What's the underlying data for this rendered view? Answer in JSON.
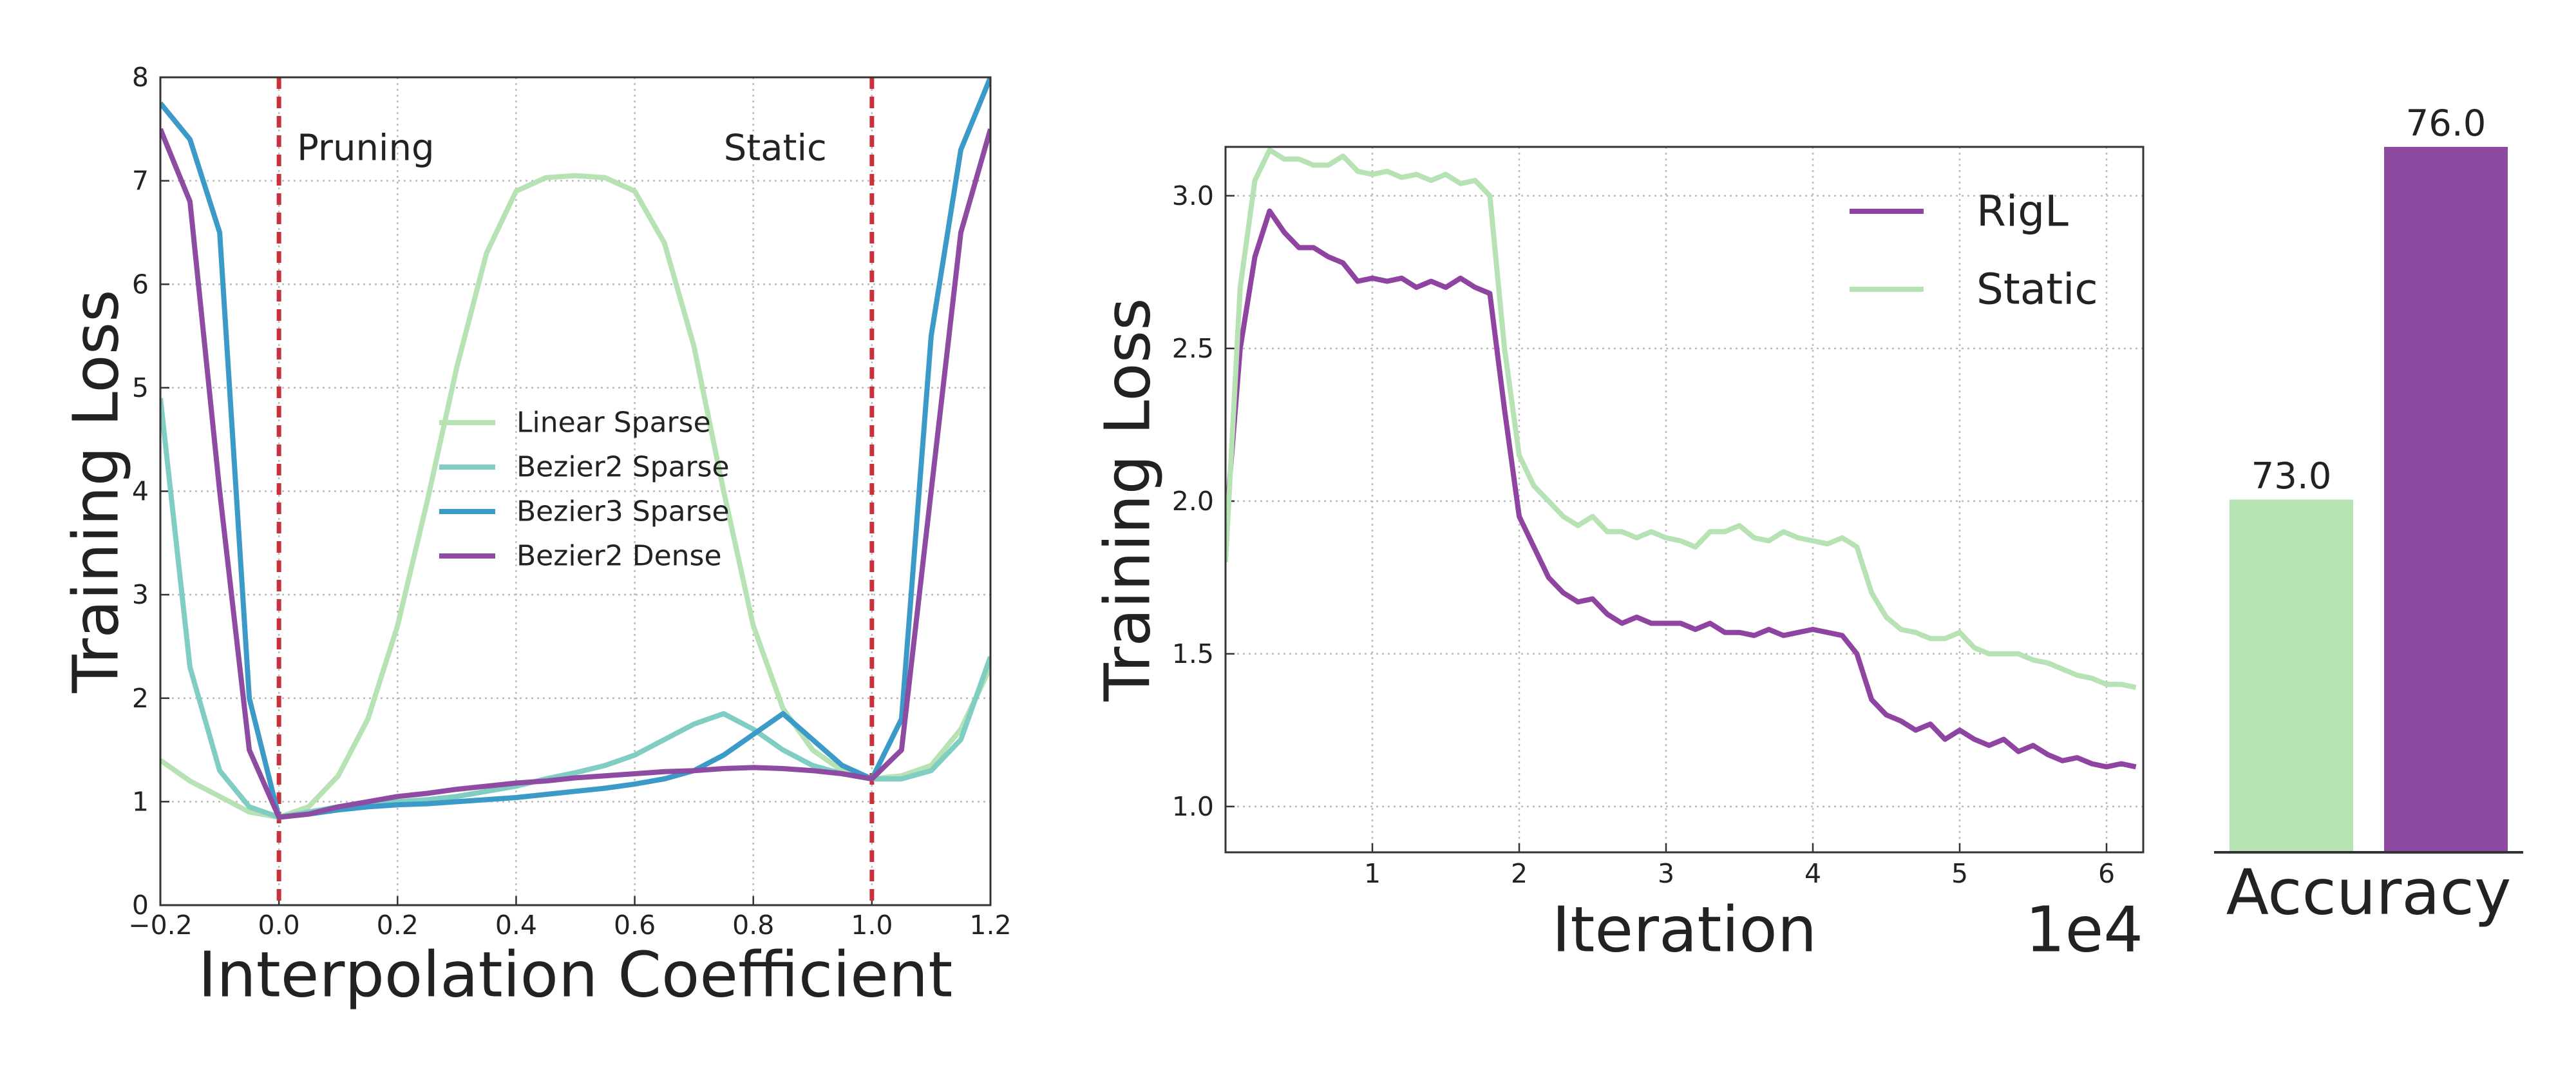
{
  "chart_data": [
    {
      "type": "line",
      "xlabel": "Interpolation Coefficient",
      "ylabel": "Training Loss",
      "xlim": [
        -0.2,
        1.2
      ],
      "ylim": [
        0,
        8
      ],
      "xticks": [
        {
          "value": -0.2,
          "label": "−0.2"
        },
        {
          "value": 0,
          "label": "0.0"
        },
        0.2,
        0.4,
        0.6,
        0.8,
        {
          "value": 1,
          "label": "1.0"
        },
        1.2
      ],
      "yticks": [
        0,
        1,
        2,
        3,
        4,
        5,
        6,
        7,
        8
      ],
      "grid": true,
      "legend": "center",
      "annotations": [
        {
          "text": "Pruning",
          "x": 0
        },
        {
          "text": "Static",
          "x": 1
        }
      ],
      "annotation_color": "#c8323c",
      "x": [
        -0.2,
        -0.15,
        -0.1,
        -0.05,
        0,
        0.05,
        0.1,
        0.15,
        0.2,
        0.25,
        0.3,
        0.35,
        0.4,
        0.45,
        0.5,
        0.55,
        0.6,
        0.65,
        0.7,
        0.75,
        0.8,
        0.85,
        0.9,
        0.95,
        1.0,
        1.05,
        1.1,
        1.15,
        1.2
      ],
      "series": [
        {
          "name": "Linear Sparse",
          "color": "#b6e2b4",
          "values": [
            1.4,
            1.2,
            1.05,
            0.9,
            0.85,
            0.95,
            1.25,
            1.8,
            2.7,
            3.9,
            5.2,
            6.3,
            6.9,
            7.03,
            7.05,
            7.03,
            6.9,
            6.4,
            5.4,
            4.0,
            2.7,
            1.9,
            1.5,
            1.3,
            1.22,
            1.25,
            1.35,
            1.7,
            2.3
          ]
        },
        {
          "name": "Bezier2 Sparse",
          "color": "#7fcdc3",
          "values": [
            4.9,
            2.3,
            1.3,
            0.95,
            0.85,
            0.9,
            0.95,
            0.98,
            1.0,
            1.02,
            1.05,
            1.1,
            1.15,
            1.22,
            1.28,
            1.35,
            1.45,
            1.6,
            1.75,
            1.85,
            1.7,
            1.5,
            1.35,
            1.27,
            1.22,
            1.22,
            1.3,
            1.6,
            2.4
          ]
        },
        {
          "name": "Bezier3 Sparse",
          "color": "#3b9ac8",
          "values": [
            7.75,
            7.4,
            6.5,
            2.0,
            0.85,
            0.88,
            0.92,
            0.95,
            0.97,
            0.98,
            1.0,
            1.02,
            1.04,
            1.07,
            1.1,
            1.13,
            1.17,
            1.22,
            1.3,
            1.45,
            1.65,
            1.85,
            1.6,
            1.35,
            1.22,
            1.8,
            5.5,
            7.3,
            8.0
          ]
        },
        {
          "name": "Bezier2 Dense",
          "color": "#8e4ba2",
          "values": [
            7.5,
            6.8,
            4.0,
            1.5,
            0.85,
            0.88,
            0.95,
            1.0,
            1.05,
            1.08,
            1.12,
            1.15,
            1.18,
            1.2,
            1.23,
            1.25,
            1.27,
            1.29,
            1.3,
            1.32,
            1.33,
            1.32,
            1.3,
            1.27,
            1.22,
            1.5,
            4.0,
            6.5,
            7.5
          ]
        }
      ]
    },
    {
      "type": "line",
      "xlabel": "Iteration",
      "ylabel": "Training Loss",
      "x_offset_text": "1e4",
      "xlim": [
        0,
        6.25
      ],
      "ylim": [
        0.85,
        3.16
      ],
      "xticks": [
        1,
        2,
        3,
        4,
        5,
        6
      ],
      "yticks": [
        {
          "value": 1,
          "label": "1.0"
        },
        1.5,
        {
          "value": 2,
          "label": "2.0"
        },
        2.5,
        {
          "value": 3,
          "label": "3.0"
        }
      ],
      "grid": true,
      "legend": "upper right",
      "x": [
        0,
        0.1,
        0.2,
        0.3,
        0.4,
        0.5,
        0.6,
        0.7,
        0.8,
        0.9,
        1.0,
        1.1,
        1.2,
        1.3,
        1.4,
        1.5,
        1.6,
        1.7,
        1.8,
        1.9,
        2.0,
        2.1,
        2.2,
        2.3,
        2.4,
        2.5,
        2.6,
        2.7,
        2.8,
        2.9,
        3.0,
        3.1,
        3.2,
        3.3,
        3.4,
        3.5,
        3.6,
        3.7,
        3.8,
        3.9,
        4.0,
        4.1,
        4.2,
        4.3,
        4.4,
        4.5,
        4.6,
        4.7,
        4.8,
        4.9,
        5.0,
        5.1,
        5.2,
        5.3,
        5.4,
        5.5,
        5.6,
        5.7,
        5.8,
        5.9,
        6.0,
        6.1,
        6.2
      ],
      "series": [
        {
          "name": "RigL",
          "color": "#8e44a0",
          "values": [
            1.9,
            2.5,
            2.8,
            2.95,
            2.88,
            2.83,
            2.83,
            2.8,
            2.78,
            2.72,
            2.73,
            2.72,
            2.73,
            2.7,
            2.72,
            2.7,
            2.73,
            2.7,
            2.68,
            2.3,
            1.95,
            1.85,
            1.75,
            1.7,
            1.67,
            1.68,
            1.63,
            1.6,
            1.62,
            1.6,
            1.6,
            1.6,
            1.58,
            1.6,
            1.57,
            1.57,
            1.56,
            1.58,
            1.56,
            1.57,
            1.58,
            1.57,
            1.56,
            1.5,
            1.35,
            1.3,
            1.28,
            1.25,
            1.27,
            1.22,
            1.25,
            1.22,
            1.2,
            1.22,
            1.18,
            1.2,
            1.17,
            1.15,
            1.16,
            1.14,
            1.13,
            1.14,
            1.13
          ]
        },
        {
          "name": "Static",
          "color": "#b6e2b4",
          "values": [
            1.8,
            2.7,
            3.05,
            3.15,
            3.12,
            3.12,
            3.1,
            3.1,
            3.13,
            3.08,
            3.07,
            3.08,
            3.06,
            3.07,
            3.05,
            3.07,
            3.04,
            3.05,
            3.0,
            2.5,
            2.15,
            2.05,
            2.0,
            1.95,
            1.92,
            1.95,
            1.9,
            1.9,
            1.88,
            1.9,
            1.88,
            1.87,
            1.85,
            1.9,
            1.9,
            1.92,
            1.88,
            1.87,
            1.9,
            1.88,
            1.87,
            1.86,
            1.88,
            1.85,
            1.7,
            1.62,
            1.58,
            1.57,
            1.55,
            1.55,
            1.57,
            1.52,
            1.5,
            1.5,
            1.5,
            1.48,
            1.47,
            1.45,
            1.43,
            1.42,
            1.4,
            1.4,
            1.39
          ]
        }
      ]
    },
    {
      "type": "bar",
      "xlabel": "Accuracy",
      "categories": [
        null,
        null
      ],
      "values": [
        73.0,
        76.0
      ],
      "value_labels": [
        "73.0",
        "76.0"
      ],
      "colors": [
        "#b6e2b4",
        "#8e4aa0"
      ],
      "ylim": [
        70,
        76
      ]
    }
  ]
}
